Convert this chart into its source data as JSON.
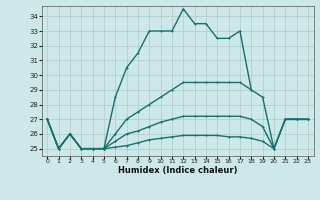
{
  "title": "",
  "xlabel": "Humidex (Indice chaleur)",
  "xlim": [
    -0.5,
    23.5
  ],
  "ylim": [
    24.5,
    34.7
  ],
  "yticks": [
    25,
    26,
    27,
    28,
    29,
    30,
    31,
    32,
    33,
    34
  ],
  "xticks": [
    0,
    1,
    2,
    3,
    4,
    5,
    6,
    7,
    8,
    9,
    10,
    11,
    12,
    13,
    14,
    15,
    16,
    17,
    18,
    19,
    20,
    21,
    22,
    23
  ],
  "background_color": "#cce8e8",
  "plot_bg_color": "#cce8e8",
  "grid_color": "#b0c8c8",
  "line_color": "#1a6e6e",
  "lines": [
    {
      "x": [
        0,
        1,
        2,
        3,
        4,
        5,
        6,
        7,
        8,
        9,
        10,
        11,
        12,
        13,
        14,
        15,
        16,
        17,
        18,
        19,
        20,
        21,
        22,
        23
      ],
      "y": [
        27,
        25,
        26,
        25,
        25,
        25,
        28.5,
        30.5,
        31.5,
        33,
        33,
        33,
        34.5,
        33.5,
        33.5,
        32.5,
        32.5,
        33,
        29,
        null,
        null,
        27,
        27,
        27
      ]
    },
    {
      "x": [
        0,
        1,
        2,
        3,
        4,
        5,
        6,
        7,
        8,
        9,
        10,
        11,
        12,
        13,
        14,
        15,
        16,
        17,
        18,
        19,
        20,
        21,
        22,
        23
      ],
      "y": [
        27,
        25,
        26,
        25,
        25,
        25,
        26,
        27,
        27.5,
        28,
        28.5,
        29,
        29.5,
        29.5,
        29.5,
        29.5,
        29.5,
        29.5,
        29,
        28.5,
        25,
        27,
        27,
        27
      ]
    },
    {
      "x": [
        0,
        1,
        2,
        3,
        4,
        5,
        6,
        7,
        8,
        9,
        10,
        11,
        12,
        13,
        14,
        15,
        16,
        17,
        18,
        19,
        20,
        21,
        22,
        23
      ],
      "y": [
        27,
        25,
        26,
        25,
        25,
        25,
        25.5,
        26,
        26.2,
        26.5,
        26.8,
        27,
        27.2,
        27.2,
        27.2,
        27.2,
        27.2,
        27.2,
        27,
        26.5,
        25,
        27,
        27,
        27
      ]
    },
    {
      "x": [
        0,
        1,
        2,
        3,
        4,
        5,
        6,
        7,
        8,
        9,
        10,
        11,
        12,
        13,
        14,
        15,
        16,
        17,
        18,
        19,
        20,
        21,
        22,
        23
      ],
      "y": [
        27,
        25,
        26,
        25,
        25,
        25,
        25.1,
        25.2,
        25.4,
        25.6,
        25.7,
        25.8,
        25.9,
        25.9,
        25.9,
        25.9,
        25.8,
        25.8,
        25.7,
        25.5,
        25,
        27,
        27,
        27
      ]
    }
  ]
}
